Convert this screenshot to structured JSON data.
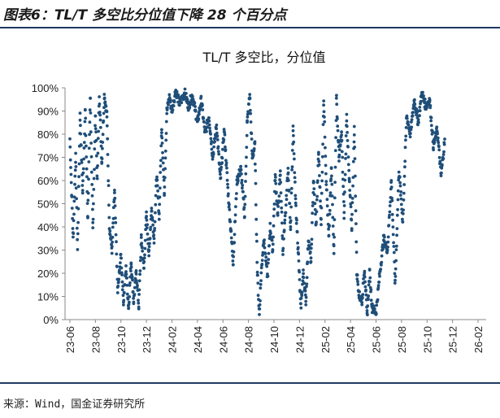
{
  "figure_title": "图表6：TL/T 多空比分位值下降 28 个百分点",
  "source": "来源：Wind，国金证券研究所",
  "colors": {
    "dot": "#1f4e79",
    "axis": "#888888",
    "rule": "#1f3a63"
  },
  "chart_data": {
    "type": "scatter",
    "title": "TL/T 多空比，分位值",
    "series_name": "TL/T 多空比分位值",
    "ylabel": "",
    "xlabel": "",
    "ylim": [
      0,
      100
    ],
    "y_ticks": [
      "100%",
      "90%",
      "80%",
      "70%",
      "60%",
      "50%",
      "40%",
      "30%",
      "20%",
      "10%",
      "0%"
    ],
    "x_ticks": [
      "23-06",
      "23-08",
      "23-10",
      "23-12",
      "24-02",
      "24-04",
      "24-06",
      "24-08",
      "24-10",
      "24-12",
      "25-02",
      "25-04",
      "25-06",
      "25-08",
      "25-10",
      "25-12",
      "26-02"
    ],
    "x_range_months": [
      0,
      34
    ],
    "anchors_month_value": [
      [
        0.0,
        78
      ],
      [
        0.25,
        35
      ],
      [
        0.45,
        70
      ],
      [
        0.6,
        30
      ],
      [
        0.8,
        88
      ],
      [
        1.0,
        55
      ],
      [
        1.2,
        90
      ],
      [
        1.4,
        45
      ],
      [
        1.6,
        95
      ],
      [
        1.8,
        40
      ],
      [
        2.0,
        88
      ],
      [
        2.15,
        60
      ],
      [
        2.3,
        98
      ],
      [
        2.5,
        68
      ],
      [
        2.7,
        97
      ],
      [
        2.9,
        88
      ],
      [
        3.1,
        40
      ],
      [
        3.3,
        30
      ],
      [
        3.5,
        55
      ],
      [
        3.75,
        12
      ],
      [
        4.0,
        28
      ],
      [
        4.2,
        8
      ],
      [
        4.4,
        22
      ],
      [
        4.6,
        5
      ],
      [
        4.8,
        25
      ],
      [
        5.0,
        8
      ],
      [
        5.2,
        20
      ],
      [
        5.4,
        6
      ],
      [
        5.6,
        35
      ],
      [
        5.8,
        22
      ],
      [
        6.0,
        45
      ],
      [
        6.2,
        28
      ],
      [
        6.4,
        48
      ],
      [
        6.6,
        35
      ],
      [
        6.8,
        62
      ],
      [
        7.0,
        45
      ],
      [
        7.2,
        83
      ],
      [
        7.4,
        55
      ],
      [
        7.6,
        90
      ],
      [
        7.8,
        96
      ],
      [
        8.0,
        90
      ],
      [
        8.3,
        99
      ],
      [
        8.6,
        93
      ],
      [
        9.0,
        98
      ],
      [
        9.3,
        92
      ],
      [
        9.6,
        97
      ],
      [
        10.0,
        85
      ],
      [
        10.3,
        95
      ],
      [
        10.6,
        80
      ],
      [
        10.9,
        88
      ],
      [
        11.2,
        70
      ],
      [
        11.5,
        84
      ],
      [
        11.8,
        60
      ],
      [
        12.1,
        82
      ],
      [
        12.4,
        55
      ],
      [
        12.6,
        40
      ],
      [
        12.8,
        25
      ],
      [
        13.1,
        60
      ],
      [
        13.4,
        65
      ],
      [
        13.7,
        45
      ],
      [
        13.9,
        85
      ],
      [
        14.1,
        97
      ],
      [
        14.3,
        70
      ],
      [
        14.5,
        75
      ],
      [
        14.7,
        20
      ],
      [
        14.85,
        2
      ],
      [
        15.0,
        20
      ],
      [
        15.2,
        35
      ],
      [
        15.5,
        18
      ],
      [
        15.7,
        40
      ],
      [
        15.9,
        30
      ],
      [
        16.1,
        62
      ],
      [
        16.3,
        45
      ],
      [
        16.5,
        63
      ],
      [
        16.7,
        30
      ],
      [
        16.9,
        45
      ],
      [
        17.1,
        65
      ],
      [
        17.3,
        40
      ],
      [
        17.5,
        82
      ],
      [
        17.7,
        50
      ],
      [
        17.9,
        30
      ],
      [
        18.1,
        5
      ],
      [
        18.3,
        20
      ],
      [
        18.5,
        8
      ],
      [
        18.7,
        35
      ],
      [
        18.9,
        25
      ],
      [
        19.1,
        60
      ],
      [
        19.3,
        40
      ],
      [
        19.5,
        72
      ],
      [
        19.7,
        42
      ],
      [
        19.9,
        95
      ],
      [
        20.1,
        60
      ],
      [
        20.3,
        35
      ],
      [
        20.5,
        65
      ],
      [
        20.7,
        30
      ],
      [
        20.9,
        95
      ],
      [
        21.1,
        70
      ],
      [
        21.3,
        80
      ],
      [
        21.5,
        45
      ],
      [
        21.7,
        88
      ],
      [
        21.9,
        60
      ],
      [
        22.1,
        40
      ],
      [
        22.3,
        82
      ],
      [
        22.5,
        20
      ],
      [
        22.7,
        10
      ],
      [
        22.9,
        8
      ],
      [
        23.1,
        22
      ],
      [
        23.3,
        2
      ],
      [
        23.5,
        20
      ],
      [
        23.7,
        5
      ],
      [
        24.0,
        3
      ],
      [
        24.3,
        20
      ],
      [
        24.6,
        35
      ],
      [
        24.9,
        30
      ],
      [
        25.2,
        60
      ],
      [
        25.5,
        15
      ],
      [
        25.8,
        65
      ],
      [
        26.1,
        42
      ],
      [
        26.4,
        88
      ],
      [
        26.7,
        80
      ],
      [
        27.0,
        95
      ],
      [
        27.3,
        85
      ],
      [
        27.6,
        98
      ],
      [
        27.9,
        92
      ],
      [
        28.2,
        95
      ],
      [
        28.5,
        75
      ],
      [
        28.8,
        82
      ],
      [
        29.1,
        62
      ],
      [
        29.4,
        78
      ]
    ]
  }
}
